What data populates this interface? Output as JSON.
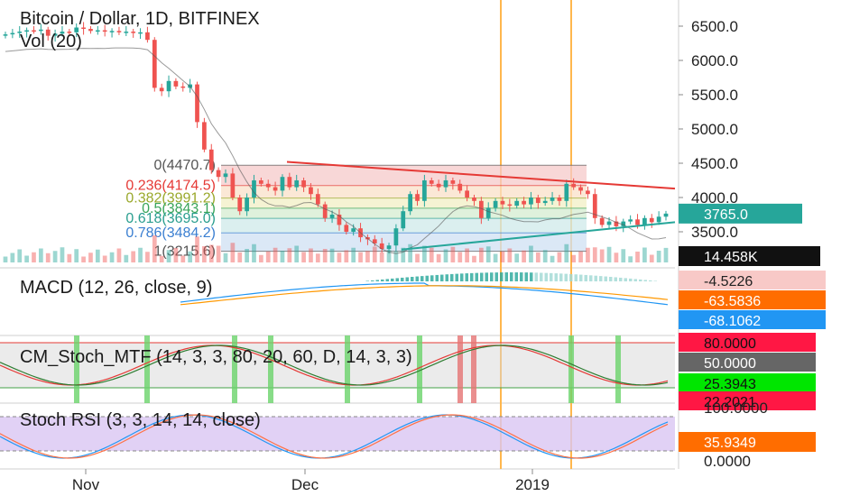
{
  "header": {
    "title": "Bitcoin / Dollar, 1D, BITFINEX",
    "volume_label": "Vol (20)"
  },
  "colors": {
    "up": "#26a69a",
    "down": "#ef5350",
    "fib_line": "#e53935",
    "trend_upper": "#e53935",
    "trend_lower": "#26a69a",
    "vertical_marker": "#ffb74d"
  },
  "chart_data": [
    {
      "type": "candlestick",
      "title": "Bitcoin / Dollar, 1D, BITFINEX",
      "ylim": [
        3100,
        6800
      ],
      "y_ticks": [
        "6500.0",
        "6000.0",
        "5500.0",
        "5000.0",
        "4500.0",
        "4000.0",
        "3500.0"
      ],
      "x_ticks": [
        "Nov",
        "Dec",
        "2019"
      ],
      "last_price": "3765.0",
      "volume_last": "14.458K",
      "fib_levels": [
        {
          "ratio": "0",
          "price": 4470.7,
          "label": "0(4470.7)"
        },
        {
          "ratio": "0.236",
          "price": 4174.5,
          "label": "0.236(4174.5)"
        },
        {
          "ratio": "0.382",
          "price": 3991.2,
          "label": "0.382(3991.2)"
        },
        {
          "ratio": "0.5",
          "price": 3843.1,
          "label": "0.5(3843.1)"
        },
        {
          "ratio": "0.618",
          "price": 3695.0,
          "label": "0.618(3695.0)"
        },
        {
          "ratio": "0.786",
          "price": 3484.2,
          "label": "0.786(3484.2)"
        },
        {
          "ratio": "1",
          "price": 3215.6,
          "label": "1(3215.6)"
        }
      ],
      "close_prices": [
        6380,
        6400,
        6420,
        6440,
        6430,
        6450,
        6360,
        6390,
        6420,
        6410,
        6480,
        6460,
        6430,
        6440,
        6420,
        6430,
        6410,
        6420,
        6400,
        6410,
        6300,
        5600,
        5550,
        5700,
        5620,
        5600,
        5650,
        5100,
        4700,
        4400,
        4300,
        4350,
        4000,
        3800,
        4000,
        4250,
        4200,
        4150,
        4100,
        4300,
        4150,
        4250,
        4150,
        4050,
        3900,
        3700,
        3750,
        3600,
        3500,
        3550,
        3420,
        3390,
        3330,
        3250,
        3300,
        3550,
        3800,
        4050,
        3950,
        4250,
        4200,
        4150,
        4250,
        4200,
        4100,
        4000,
        3950,
        3700,
        3850,
        3950,
        3900,
        3880,
        3950,
        3900,
        4000,
        3920,
        3950,
        4000,
        3950,
        4200,
        4150,
        4100,
        4050,
        3700,
        3600,
        3650,
        3580,
        3650,
        3680,
        3600,
        3700,
        3640,
        3720,
        3765
      ]
    },
    {
      "type": "line",
      "title": "MACD (12, 26, close, 9)",
      "value_labels": [
        "-4.5226",
        "-63.5836",
        "-68.1062"
      ]
    },
    {
      "type": "line",
      "title": "CM_Stoch_MTF (14, 3, 3, 80, 20, 60, D, 14, 3, 3)",
      "value_labels": [
        "80.0000",
        "50.0000",
        "25.3943",
        "22.2021"
      ]
    },
    {
      "type": "line",
      "title": "Stoch RSI (3, 3, 14, 14, close)",
      "y_ticks": [
        "100.0000",
        "0.0000"
      ],
      "value_labels": [
        "35.9349"
      ]
    }
  ]
}
